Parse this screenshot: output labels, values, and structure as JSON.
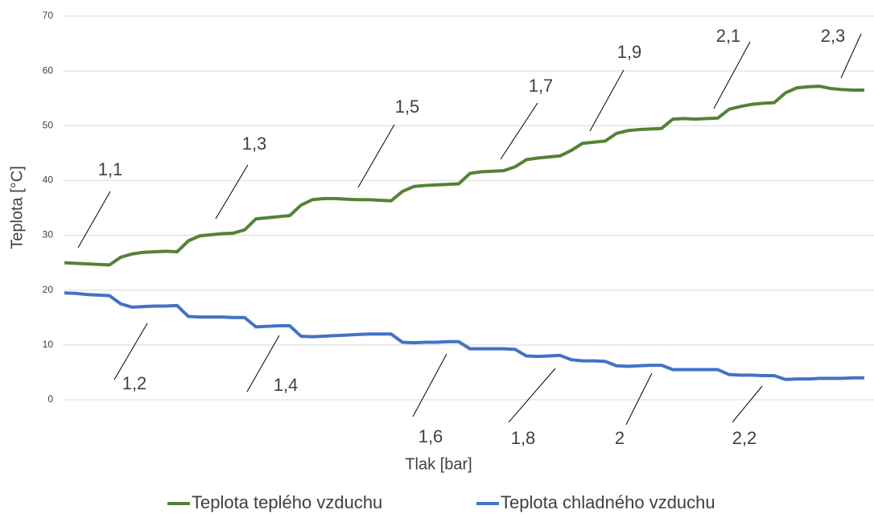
{
  "chart_data": {
    "type": "line",
    "xlabel": "Tlak [bar]",
    "ylabel": "Teplota [°C]",
    "ylim": [
      0,
      70
    ],
    "yticks": [
      0,
      10,
      20,
      30,
      40,
      50,
      60,
      70
    ],
    "grid": true,
    "legend": "bottom",
    "annotations": [
      "1,1",
      "1,3",
      "1,5",
      "1,7",
      "1,9",
      "2,1",
      "2,3",
      "1,2",
      "1,4",
      "1,6",
      "1,8",
      "2",
      "2,2"
    ],
    "series": [
      {
        "name": "Teplota teplého vzduchu",
        "color": "#548235",
        "values": [
          25,
          24.9,
          24.8,
          24.7,
          24.6,
          26,
          26.6,
          26.9,
          27,
          27.1,
          27,
          29,
          29.9,
          30.1,
          30.3,
          30.4,
          31,
          33,
          33.2,
          33.4,
          33.6,
          35.5,
          36.5,
          36.7,
          36.7,
          36.6,
          36.5,
          36.5,
          36.4,
          36.3,
          38,
          38.9,
          39.1,
          39.2,
          39.3,
          39.4,
          41.3,
          41.6,
          41.7,
          41.8,
          42.5,
          43.8,
          44.1,
          44.3,
          44.5,
          45.5,
          46.8,
          47,
          47.2,
          48.6,
          49.1,
          49.3,
          49.4,
          49.5,
          51.2,
          51.3,
          51.2,
          51.3,
          51.4,
          53,
          53.5,
          53.9,
          54.1,
          54.2,
          56,
          56.9,
          57.1,
          57.2,
          56.8,
          56.6,
          56.5,
          56.5
        ]
      },
      {
        "name": "Teplota chladného vzduchu",
        "color": "#4472c4",
        "values": [
          19.5,
          19.4,
          19.2,
          19.1,
          19,
          17.5,
          16.9,
          17,
          17.1,
          17.1,
          17.2,
          15.2,
          15.1,
          15.1,
          15.1,
          15,
          15,
          13.3,
          13.4,
          13.5,
          13.5,
          11.6,
          11.5,
          11.6,
          11.7,
          11.8,
          11.9,
          12,
          12,
          12,
          10.5,
          10.4,
          10.5,
          10.5,
          10.6,
          10.6,
          9.3,
          9.3,
          9.3,
          9.3,
          9.2,
          8,
          7.9,
          8,
          8.1,
          7.3,
          7.1,
          7.1,
          7,
          6.2,
          6.1,
          6.2,
          6.3,
          6.3,
          5.5,
          5.5,
          5.5,
          5.5,
          5.5,
          4.6,
          4.5,
          4.5,
          4.4,
          4.4,
          3.7,
          3.8,
          3.8,
          3.9,
          3.9,
          3.9,
          4,
          4
        ]
      }
    ]
  }
}
